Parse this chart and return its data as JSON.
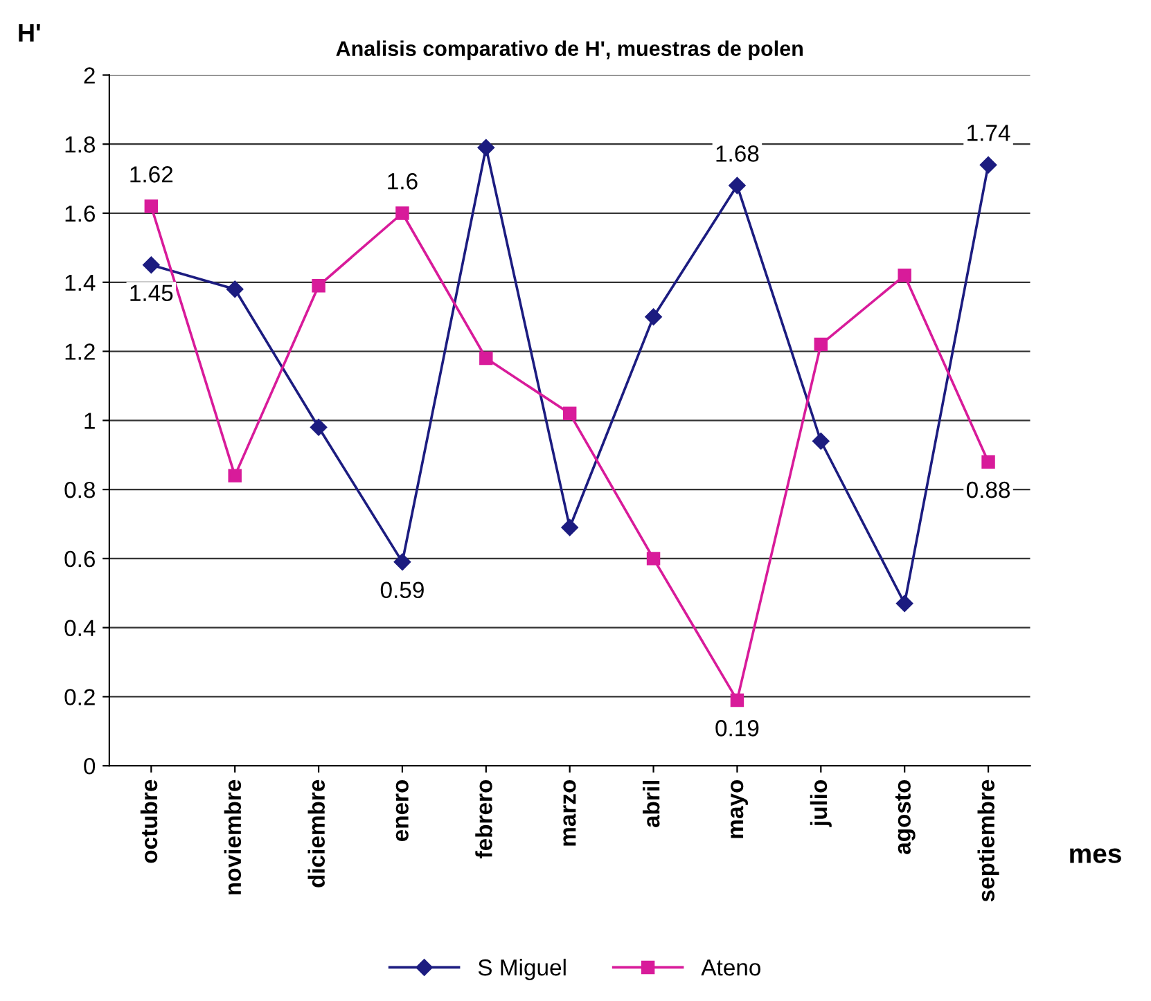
{
  "chart_data": {
    "type": "line",
    "title": "Analisis comparativo de H', muestras de polen",
    "xlabel": "mes",
    "ylabel": "H'",
    "categories": [
      "octubre",
      "noviembre",
      "diciembre",
      "enero",
      "febrero",
      "marzo",
      "abril",
      "mayo",
      "julio",
      "agosto",
      "septiembre"
    ],
    "series": [
      {
        "name": "S Miguel",
        "color": "#1c1c80",
        "marker": "diamond",
        "values": [
          1.45,
          1.38,
          0.98,
          0.59,
          1.79,
          0.69,
          1.3,
          1.68,
          0.94,
          0.47,
          1.74
        ],
        "value_labels": [
          "1.45",
          null,
          null,
          "0.59",
          null,
          null,
          null,
          "1.68",
          null,
          null,
          "1.74"
        ]
      },
      {
        "name": "Ateno",
        "color": "#d81b9a",
        "marker": "square",
        "values": [
          1.62,
          0.84,
          1.39,
          1.6,
          1.18,
          1.02,
          0.6,
          0.19,
          1.22,
          1.42,
          0.88
        ],
        "value_labels": [
          "1.62",
          null,
          null,
          "1.6",
          null,
          null,
          null,
          "0.19",
          null,
          null,
          "0.88"
        ]
      }
    ],
    "ylim": [
      0,
      2
    ],
    "yticks": [
      0,
      0.2,
      0.4,
      0.6,
      0.8,
      1,
      1.2,
      1.4,
      1.6,
      1.8,
      2
    ],
    "grid": "y",
    "legend": "bottom",
    "line_style": "solid"
  }
}
